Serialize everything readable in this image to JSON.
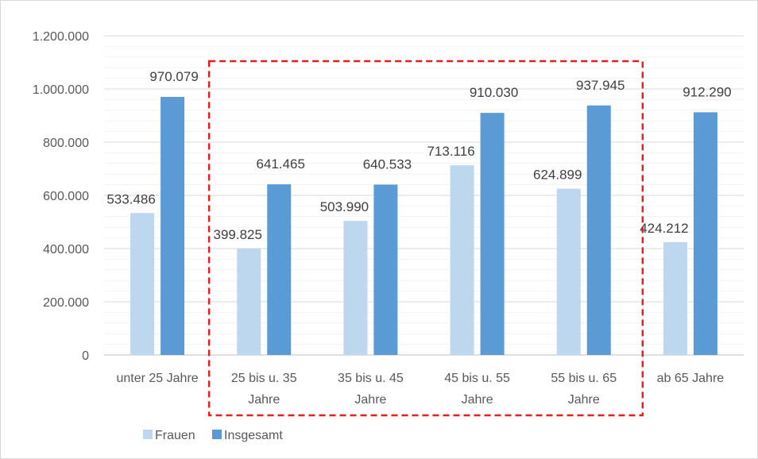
{
  "chart_data": {
    "type": "bar",
    "categories": [
      [
        "unter 25 Jahre"
      ],
      [
        "25 bis u. 35",
        "Jahre"
      ],
      [
        "35 bis u. 45",
        "Jahre"
      ],
      [
        "45 bis u. 55",
        "Jahre"
      ],
      [
        "55 bis u. 65",
        "Jahre"
      ],
      [
        "ab 65 Jahre"
      ]
    ],
    "series": [
      {
        "name": "Frauen",
        "color": "#bdd7ee",
        "values": [
          533486,
          399825,
          503990,
          713116,
          624899,
          424212
        ],
        "labels": [
          "533.486",
          "399.825",
          "503.990",
          "713.116",
          "624.899",
          "424.212"
        ]
      },
      {
        "name": "Insgesamt",
        "color": "#5b9bd5",
        "values": [
          970079,
          641465,
          640533,
          910030,
          937945,
          912290
        ],
        "labels": [
          "970.079",
          "641.465",
          "640.533",
          "910.030",
          "937.945",
          "912.290"
        ]
      }
    ],
    "ylim": [
      0,
      1200000
    ],
    "yticks": [
      0,
      200000,
      400000,
      600000,
      800000,
      1000000,
      1200000
    ],
    "ytick_labels": [
      "0",
      "200.000",
      "400.000",
      "600.000",
      "800.000",
      "1.000.000",
      "1.200.000"
    ],
    "grid": true,
    "legend_position": "bottom-left",
    "highlight": {
      "categories": [
        1,
        2,
        3,
        4
      ],
      "style": "dashed",
      "color": "#e0211d"
    }
  }
}
